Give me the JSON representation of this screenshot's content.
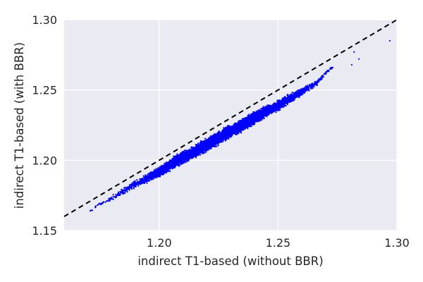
{
  "chart_data": {
    "type": "scatter",
    "title": "",
    "xlabel": "indirect T1-based (without BBR)",
    "ylabel": "indirect T1-based (with BBR)",
    "xlim": [
      1.16,
      1.3
    ],
    "ylim": [
      1.15,
      1.3
    ],
    "xticks": [
      1.2,
      1.25,
      1.3
    ],
    "xtick_labels": [
      "1.20",
      "1.25",
      "1.30"
    ],
    "yticks": [
      1.15,
      1.2,
      1.25,
      1.3
    ],
    "ytick_labels": [
      "1.15",
      "1.20",
      "1.25",
      "1.30"
    ],
    "grid": true,
    "background": "#EAEAF2",
    "point_color": "#0000FF",
    "reference_line": {
      "type": "identity",
      "style": "dashed",
      "color": "#000000"
    },
    "series": [
      {
        "x": [
          1.171,
          1.174,
          1.178,
          1.181,
          1.184,
          1.187,
          1.19,
          1.193,
          1.196,
          1.198,
          1.2,
          1.202,
          1.204,
          1.206,
          1.208,
          1.21,
          1.212,
          1.214,
          1.216,
          1.218,
          1.22,
          1.222,
          1.224,
          1.226,
          1.228,
          1.23,
          1.232,
          1.234,
          1.236,
          1.238,
          1.24,
          1.242,
          1.244,
          1.246,
          1.248,
          1.25,
          1.252,
          1.254,
          1.256,
          1.258,
          1.26,
          1.262,
          1.264,
          1.266,
          1.268,
          1.27,
          1.272,
          1.273,
          1.281,
          1.282,
          1.284,
          1.297
        ],
        "y": [
          1.164,
          1.168,
          1.171,
          1.174,
          1.177,
          1.18,
          1.183,
          1.185,
          1.188,
          1.19,
          1.192,
          1.194,
          1.196,
          1.198,
          1.2,
          1.202,
          1.204,
          1.205,
          1.207,
          1.209,
          1.211,
          1.213,
          1.215,
          1.217,
          1.219,
          1.221,
          1.222,
          1.224,
          1.226,
          1.228,
          1.23,
          1.232,
          1.234,
          1.236,
          1.237,
          1.239,
          1.241,
          1.243,
          1.245,
          1.247,
          1.249,
          1.251,
          1.253,
          1.255,
          1.258,
          1.262,
          1.265,
          1.266,
          1.268,
          1.277,
          1.272,
          1.285
        ],
        "spread": [
          0.001,
          0.0015,
          0.002,
          0.0025,
          0.003,
          0.003,
          0.0035,
          0.004,
          0.004,
          0.0045,
          0.005,
          0.005,
          0.005,
          0.0055,
          0.0055,
          0.0055,
          0.0055,
          0.0055,
          0.0055,
          0.0055,
          0.0055,
          0.0055,
          0.0055,
          0.0055,
          0.0055,
          0.0055,
          0.0055,
          0.0055,
          0.0055,
          0.0055,
          0.0055,
          0.005,
          0.005,
          0.005,
          0.0045,
          0.0045,
          0.004,
          0.004,
          0.0035,
          0.0035,
          0.003,
          0.003,
          0.0025,
          0.002,
          0.0015,
          0.001,
          0.001,
          0,
          0,
          0,
          0,
          0
        ],
        "density": [
          1,
          2,
          3,
          4,
          6,
          9,
          12,
          16,
          20,
          24,
          28,
          32,
          36,
          40,
          44,
          48,
          50,
          52,
          54,
          56,
          58,
          60,
          60,
          60,
          60,
          60,
          58,
          56,
          54,
          52,
          50,
          46,
          42,
          38,
          34,
          30,
          26,
          22,
          18,
          14,
          10,
          8,
          6,
          4,
          3,
          2,
          2,
          1,
          1,
          1,
          1,
          1
        ]
      }
    ]
  }
}
